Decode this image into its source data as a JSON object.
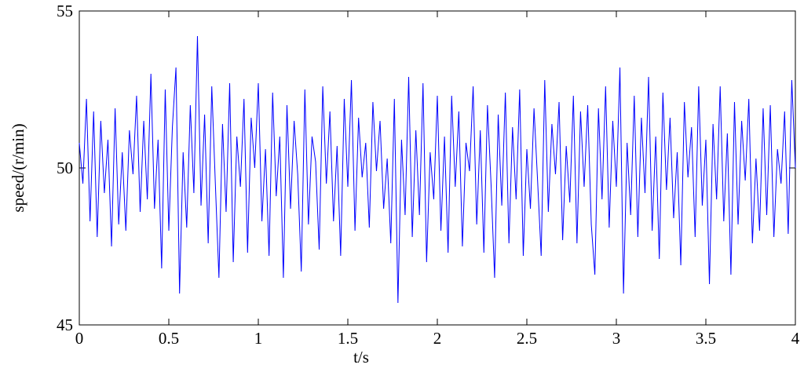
{
  "chart_data": {
    "type": "line",
    "x_label": "t/s",
    "y_label": "speed/(r/min)",
    "xlim": [
      0,
      4
    ],
    "xticks": [
      0,
      0.5,
      1,
      1.5,
      2,
      2.5,
      3,
      3.5,
      4
    ],
    "ylim": [
      45,
      55
    ],
    "yticks": [
      45,
      50,
      55
    ],
    "x": [
      0,
      0.02,
      0.04,
      0.06,
      0.08,
      0.1,
      0.12,
      0.14,
      0.16,
      0.18,
      0.2,
      0.22,
      0.24,
      0.26,
      0.28,
      0.3,
      0.32,
      0.34,
      0.36,
      0.38,
      0.4,
      0.42,
      0.44,
      0.46,
      0.48,
      0.5,
      0.52,
      0.54,
      0.56,
      0.58,
      0.6,
      0.62,
      0.64,
      0.66,
      0.68,
      0.7,
      0.72,
      0.74,
      0.76,
      0.78,
      0.8,
      0.82,
      0.84,
      0.86,
      0.88,
      0.9,
      0.92,
      0.94,
      0.96,
      0.98,
      1,
      1.02,
      1.04,
      1.06,
      1.08,
      1.1,
      1.12,
      1.14,
      1.16,
      1.18,
      1.2,
      1.22,
      1.24,
      1.26,
      1.28,
      1.3,
      1.32,
      1.34,
      1.36,
      1.38,
      1.4,
      1.42,
      1.44,
      1.46,
      1.48,
      1.5,
      1.52,
      1.54,
      1.56,
      1.58,
      1.6,
      1.62,
      1.64,
      1.66,
      1.68,
      1.7,
      1.72,
      1.74,
      1.76,
      1.78,
      1.8,
      1.82,
      1.84,
      1.86,
      1.88,
      1.9,
      1.92,
      1.94,
      1.96,
      1.98,
      2,
      2.02,
      2.04,
      2.06,
      2.08,
      2.1,
      2.12,
      2.14,
      2.16,
      2.18,
      2.2,
      2.22,
      2.24,
      2.26,
      2.28,
      2.3,
      2.32,
      2.34,
      2.36,
      2.38,
      2.4,
      2.42,
      2.44,
      2.46,
      2.48,
      2.5,
      2.52,
      2.54,
      2.56,
      2.58,
      2.6,
      2.62,
      2.64,
      2.66,
      2.68,
      2.7,
      2.72,
      2.74,
      2.76,
      2.78,
      2.8,
      2.82,
      2.84,
      2.86,
      2.88,
      2.9,
      2.92,
      2.94,
      2.96,
      2.98,
      3,
      3.02,
      3.04,
      3.06,
      3.08,
      3.1,
      3.12,
      3.14,
      3.16,
      3.18,
      3.2,
      3.22,
      3.24,
      3.26,
      3.28,
      3.3,
      3.32,
      3.34,
      3.36,
      3.38,
      3.4,
      3.42,
      3.44,
      3.46,
      3.48,
      3.5,
      3.52,
      3.54,
      3.56,
      3.58,
      3.6,
      3.62,
      3.64,
      3.66,
      3.68,
      3.7,
      3.72,
      3.74,
      3.76,
      3.78,
      3.8,
      3.82,
      3.84,
      3.86,
      3.88,
      3.9,
      3.92,
      3.94,
      3.96,
      3.98,
      4
    ],
    "series": [
      {
        "color": "#0000ff",
        "values": [
          50.8,
          49.5,
          52.2,
          48.3,
          51.8,
          47.8,
          51.5,
          49.2,
          50.9,
          47.5,
          51.9,
          48.2,
          50.5,
          48.0,
          51.2,
          49.8,
          52.3,
          48.6,
          51.5,
          49.0,
          53.0,
          48.7,
          50.9,
          46.8,
          52.5,
          48.0,
          51.3,
          53.2,
          46.0,
          50.5,
          48.1,
          52.0,
          49.2,
          54.2,
          48.8,
          51.7,
          47.6,
          52.6,
          49.5,
          46.5,
          51.4,
          48.6,
          52.7,
          47.0,
          51.0,
          49.4,
          52.2,
          47.3,
          51.6,
          50.0,
          52.7,
          48.3,
          50.6,
          47.2,
          52.4,
          49.1,
          51.0,
          46.5,
          52.0,
          48.7,
          51.5,
          49.8,
          46.7,
          52.5,
          48.2,
          51.0,
          50.2,
          47.4,
          52.6,
          49.5,
          51.8,
          48.3,
          50.7,
          47.2,
          52.2,
          49.4,
          52.8,
          48.0,
          51.6,
          49.7,
          50.8,
          48.1,
          52.1,
          49.9,
          51.5,
          48.7,
          50.3,
          47.6,
          52.2,
          45.7,
          50.9,
          48.5,
          52.9,
          47.8,
          51.2,
          48.5,
          52.7,
          47.0,
          50.5,
          49.0,
          52.3,
          48.0,
          51.0,
          47.3,
          52.3,
          49.4,
          51.8,
          47.5,
          50.8,
          49.9,
          52.6,
          48.2,
          51.2,
          47.3,
          52.0,
          49.5,
          46.5,
          51.7,
          48.8,
          52.4,
          47.6,
          51.3,
          49.0,
          52.5,
          47.2,
          50.6,
          48.7,
          51.9,
          49.6,
          47.2,
          52.8,
          48.6,
          51.4,
          49.8,
          52.1,
          47.7,
          50.7,
          48.9,
          52.3,
          47.6,
          51.8,
          49.4,
          52.0,
          48.2,
          46.6,
          51.9,
          49.0,
          52.6,
          48.1,
          51.5,
          49.4,
          53.2,
          46.0,
          50.8,
          48.5,
          52.3,
          47.8,
          51.6,
          49.2,
          52.9,
          48.0,
          51.0,
          47.1,
          52.4,
          49.3,
          51.6,
          48.4,
          50.5,
          46.9,
          52.1,
          49.7,
          51.3,
          47.8,
          52.6,
          48.8,
          50.9,
          46.3,
          51.4,
          49.0,
          52.6,
          48.3,
          51.1,
          46.6,
          52.1,
          48.2,
          51.5,
          49.6,
          52.2,
          47.6,
          50.3,
          48.0,
          51.9,
          48.5,
          52.0,
          47.8,
          50.6,
          49.5,
          51.8,
          47.9,
          52.8,
          50.0
        ]
      }
    ]
  }
}
